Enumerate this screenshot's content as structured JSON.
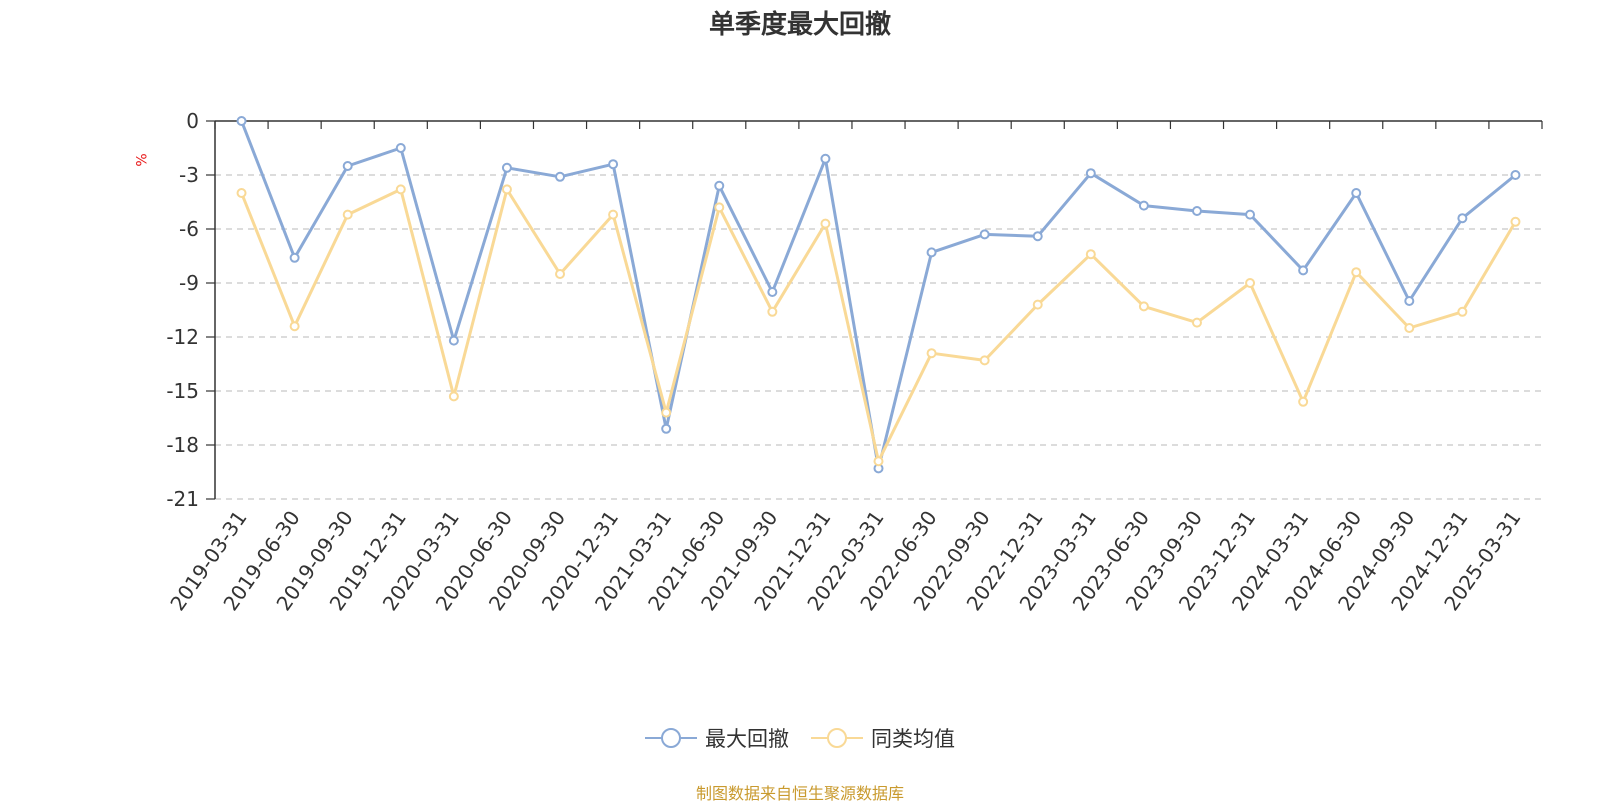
{
  "chart_data": {
    "type": "line",
    "title": "单季度最大回撤",
    "ylabel": "%",
    "ylim": [
      -21,
      0
    ],
    "yticks": [
      0,
      -3,
      -6,
      -9,
      -12,
      -15,
      -18,
      -21
    ],
    "grid": true,
    "legend_position": "bottom-center",
    "categories": [
      "2019-03-31",
      "2019-06-30",
      "2019-09-30",
      "2019-12-31",
      "2020-03-31",
      "2020-06-30",
      "2020-09-30",
      "2020-12-31",
      "2021-03-31",
      "2021-06-30",
      "2021-09-30",
      "2021-12-31",
      "2022-03-31",
      "2022-06-30",
      "2022-09-30",
      "2022-12-31",
      "2023-03-31",
      "2023-06-30",
      "2023-09-30",
      "2023-12-31",
      "2024-03-31",
      "2024-06-30",
      "2024-09-30",
      "2024-12-31",
      "2025-03-31"
    ],
    "series": [
      {
        "name": "最大回撤",
        "color": "#8aa9d6",
        "values": [
          0.0,
          -7.6,
          -2.5,
          -1.5,
          -12.2,
          -2.6,
          -3.1,
          -2.4,
          -17.1,
          -3.6,
          -9.5,
          -2.1,
          -19.3,
          -7.3,
          -6.3,
          -6.4,
          -2.9,
          -4.7,
          -5.0,
          -5.2,
          -8.3,
          -4.0,
          -10.0,
          -5.4,
          -3.0
        ]
      },
      {
        "name": "同类均值",
        "color": "#f9d996",
        "values": [
          -4.0,
          -11.4,
          -5.2,
          -3.8,
          -15.3,
          -3.8,
          -8.5,
          -5.2,
          -16.2,
          -4.8,
          -10.6,
          -5.7,
          -18.9,
          -12.9,
          -13.3,
          -10.2,
          -7.4,
          -10.3,
          -11.2,
          -9.0,
          -15.6,
          -8.4,
          -11.5,
          -10.6,
          -5.6
        ]
      }
    ]
  },
  "legend": {
    "items": [
      "最大回撤",
      "同类均值"
    ]
  },
  "footer": {
    "source": "制图数据来自恒生聚源数据库"
  }
}
